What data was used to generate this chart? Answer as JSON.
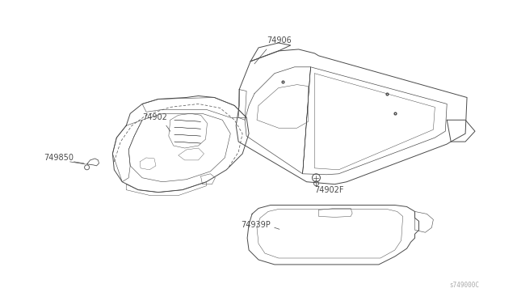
{
  "bg_color": "#ffffff",
  "line_color": "#4a4a4a",
  "fig_width": 6.4,
  "fig_height": 3.72,
  "dpi": 100,
  "watermark": "s749000C",
  "label_fontsize": 7.0
}
